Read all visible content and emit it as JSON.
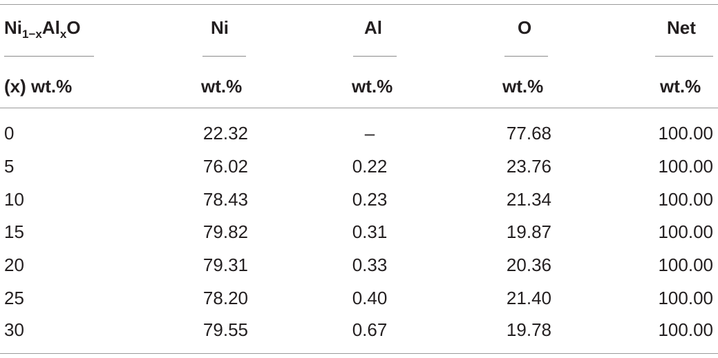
{
  "table": {
    "header_row1": {
      "col1_base": "Ni",
      "col1_sub1": "1−x",
      "col1_mid": "Al",
      "col1_sub2": "x",
      "col1_end": "O",
      "col2": "Ni",
      "col3": "Al",
      "col4": "O",
      "col5": "Net"
    },
    "header_row2": {
      "col1": "(x) wt.%",
      "col2": "wt.%",
      "col3": "wt.%",
      "col4": "wt.%",
      "col5": "wt.%"
    },
    "rows": [
      [
        "0",
        "22.32",
        "–",
        "77.68",
        "100.00"
      ],
      [
        "5",
        "76.02",
        "0.22",
        "23.76",
        "100.00"
      ],
      [
        "10",
        "78.43",
        "0.23",
        "21.34",
        "100.00"
      ],
      [
        "15",
        "79.82",
        "0.31",
        "19.87",
        "100.00"
      ],
      [
        "20",
        "79.31",
        "0.33",
        "20.36",
        "100.00"
      ],
      [
        "25",
        "78.20",
        "0.40",
        "21.40",
        "100.00"
      ],
      [
        "30",
        "79.55",
        "0.67",
        "19.78",
        "100.00"
      ]
    ]
  }
}
